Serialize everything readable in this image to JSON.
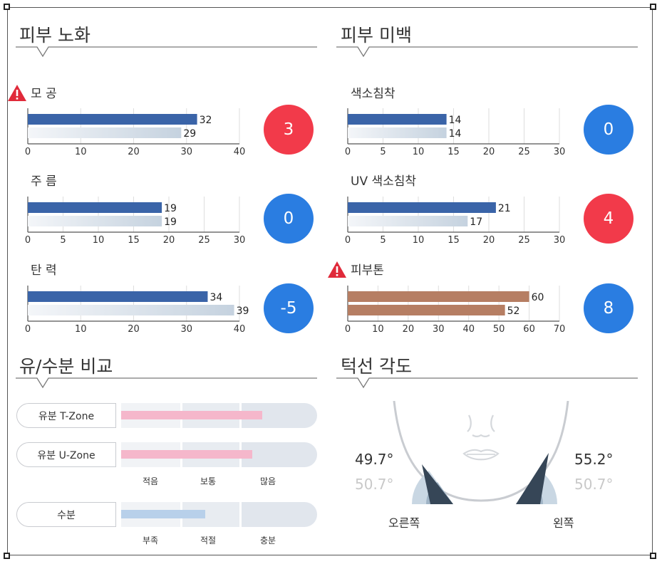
{
  "aging": {
    "title": "피부 노화",
    "metrics": [
      {
        "label": "모 공",
        "warning": true,
        "current": 32,
        "previous": 29,
        "axis_max": 40,
        "ticks": [
          0,
          10,
          20,
          30,
          40
        ],
        "score": "3",
        "score_color": "#f23a4a"
      },
      {
        "label": "주 름",
        "warning": false,
        "current": 19,
        "previous": 19,
        "axis_max": 30,
        "ticks": [
          0,
          5,
          10,
          15,
          20,
          25,
          30
        ],
        "score": "0",
        "score_color": "#2a7de1"
      },
      {
        "label": "탄 력",
        "warning": false,
        "current": 34,
        "previous": 39,
        "axis_max": 40,
        "ticks": [
          0,
          10,
          20,
          30,
          40
        ],
        "score": "-5",
        "score_color": "#2a7de1"
      }
    ]
  },
  "whitening": {
    "title": "피부 미백",
    "metrics": [
      {
        "label": "색소침착",
        "warning": false,
        "current": 14,
        "previous": 14,
        "axis_max": 30,
        "ticks": [
          0,
          5,
          10,
          15,
          20,
          25,
          30
        ],
        "score": "0",
        "score_color": "#2a7de1"
      },
      {
        "label": "UV 색소침착",
        "warning": false,
        "current": 21,
        "previous": 17,
        "axis_max": 30,
        "ticks": [
          0,
          5,
          10,
          15,
          20,
          25,
          30
        ],
        "score": "4",
        "score_color": "#f23a4a"
      },
      {
        "label": "피부톤",
        "warning": true,
        "current": 60,
        "previous": 52,
        "axis_max": 70,
        "ticks": [
          0,
          10,
          20,
          30,
          40,
          50,
          60,
          70
        ],
        "score": "8",
        "score_color": "#2a7de1",
        "tone": true
      }
    ]
  },
  "oil_water": {
    "title": "유/수분 비교",
    "rows": [
      {
        "label": "유분 T-Zone",
        "level": 0.72,
        "color": "#f5b7cb"
      },
      {
        "label": "유분 U-Zone",
        "level": 0.67,
        "color": "#f5b7cb"
      },
      {
        "label": "수분",
        "level": 0.43,
        "color": "#b8d0ea"
      }
    ],
    "oil_levels": [
      "적음",
      "보통",
      "많음"
    ],
    "water_levels": [
      "부족",
      "적절",
      "충분"
    ]
  },
  "jaw": {
    "title": "턱선 각도",
    "right": {
      "label": "오른쪽",
      "current": "49.7°",
      "previous": "50.7°"
    },
    "left": {
      "label": "왼쪽",
      "current": "55.2°",
      "previous": "50.7°"
    }
  },
  "colors": {
    "bar_current": "#3a64a8",
    "bar_previous_start": "#f4f6f9",
    "bar_previous_end": "#c5d2df",
    "tone_bar": "#b67e63",
    "warning": "#e02a3a"
  }
}
